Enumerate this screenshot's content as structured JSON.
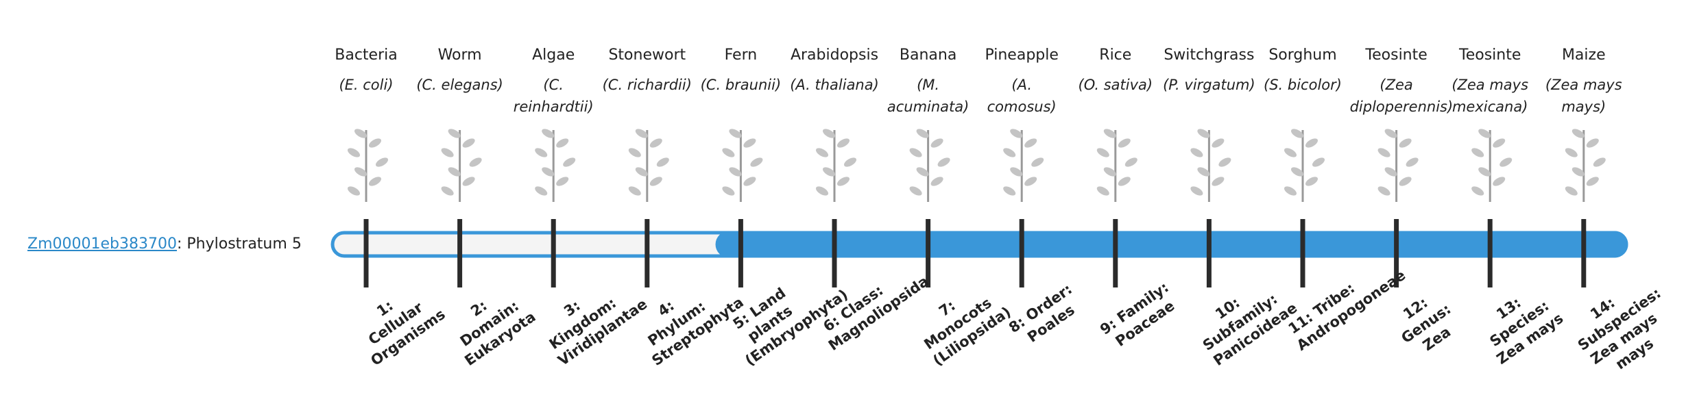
{
  "gene": {
    "id": "Zm00001eb383700",
    "label": ": Phylostratum",
    "phylostratum": 5
  },
  "columns": [
    {
      "name": "Bacteria",
      "species": "(E. coli)",
      "stratum": "1: Cellular Organisms"
    },
    {
      "name": "Worm",
      "species": "(C. elegans)",
      "stratum": "2: Domain: Eukaryota"
    },
    {
      "name": "Algae",
      "species": "(C. reinhardtii)",
      "stratum": "3: Kingdom: Viridiplantae"
    },
    {
      "name": "Stonewort",
      "species": "(C. richardii)",
      "stratum": "4: Phylum: Streptophyta"
    },
    {
      "name": "Fern",
      "species": "(C. braunii)",
      "stratum": "5: Land plants (Embryophyta)"
    },
    {
      "name": "Arabidopsis",
      "species": "(A. thaliana)",
      "stratum": "6: Class: Magnoliopsida"
    },
    {
      "name": "Banana",
      "species": "(M. acuminata)",
      "stratum": "7: Monocots (Liliopsida)"
    },
    {
      "name": "Pineapple",
      "species": "(A. comosus)",
      "stratum": "8: Order: Poales"
    },
    {
      "name": "Rice",
      "species": "(O. sativa)",
      "stratum": "9: Family: Poaceae"
    },
    {
      "name": "Switchgrass",
      "species": "(P. virgatum)",
      "stratum": "10: Subfamily: Panicoideae"
    },
    {
      "name": "Sorghum",
      "species": "(S. bicolor)",
      "stratum": "11: Tribe: Andropogoneae"
    },
    {
      "name": "Teosinte",
      "species": "(Zea diploperennis)",
      "stratum": "12: Genus: Zea"
    },
    {
      "name": "Teosinte",
      "species": "(Zea mays mexicana)",
      "stratum": "13: Species: Zea mays"
    },
    {
      "name": "Maize",
      "species": "(Zea mays mays)",
      "stratum": "14: Subspecies: Zea mays mays"
    }
  ]
}
